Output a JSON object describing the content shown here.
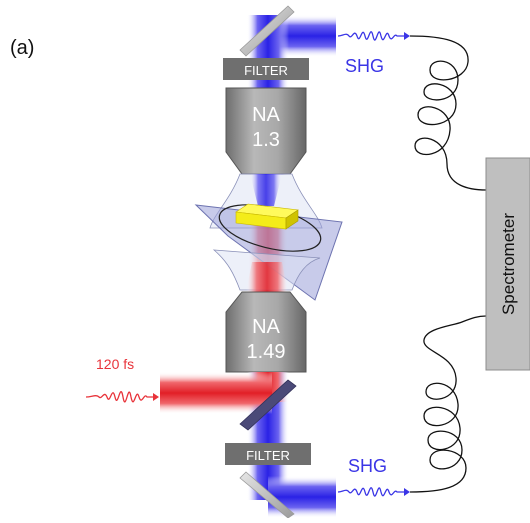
{
  "panel_label": "(a)",
  "top_filter": "FILTER",
  "bottom_filter": "FILTER",
  "top_objective": {
    "line1": "NA",
    "line2": "1.3"
  },
  "bottom_objective": {
    "line1": "NA",
    "line2": "1.49"
  },
  "shg_top": "SHG",
  "shg_bottom": "SHG",
  "pulse_label": "120 fs",
  "spectrometer": "Spectrometer",
  "colors": {
    "shg_blue": "#3a35e6",
    "laser_red": "#e8333a",
    "objective_gray": "#8e8e8e",
    "filter_gray": "#6f6f6f",
    "spectrometer_fill": "#bfbfbf",
    "sample_yellow": "#f4ec1a"
  }
}
